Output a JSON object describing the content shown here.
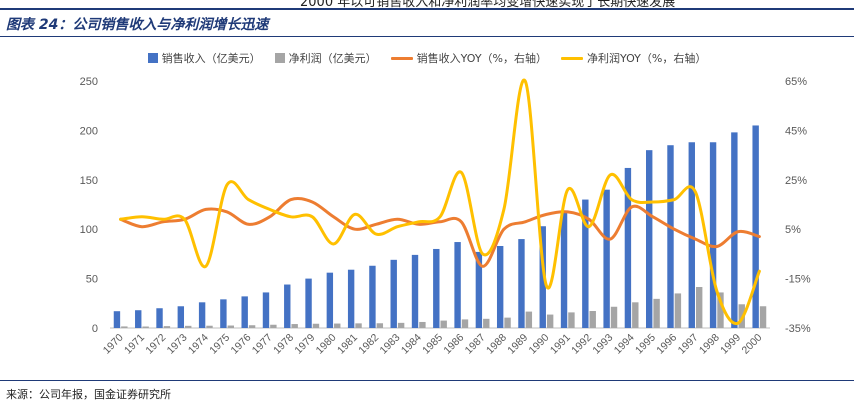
{
  "header_cut_text": "2000 年以可销售收入和净利润率均变增快速实现了长期快速发展",
  "figure_title": "图表 24：公司销售收入与净利润增长迅速",
  "source_note": "来源：公司年报，国金证券研究所",
  "chart_data": {
    "type": "bar",
    "categories": [
      "1970",
      "1971",
      "1972",
      "1973",
      "1974",
      "1975",
      "1976",
      "1977",
      "1978",
      "1979",
      "1980",
      "1981",
      "1982",
      "1983",
      "1984",
      "1985",
      "1986",
      "1987",
      "1988",
      "1989",
      "1990",
      "1991",
      "1992",
      "1993",
      "1994",
      "1995",
      "1996",
      "1997",
      "1998",
      "1999",
      "2000"
    ],
    "series": [
      {
        "name": "销售收入（亿美元）",
        "type": "bar",
        "axis": "left",
        "color": "#4472c4",
        "values": [
          17,
          18,
          20,
          22,
          26,
          29,
          32,
          36,
          44,
          50,
          56,
          59,
          63,
          69,
          74,
          80,
          87,
          77,
          83,
          90,
          103,
          118,
          130,
          140,
          162,
          180,
          185,
          188,
          188,
          198,
          205
        ]
      },
      {
        "name": "净利润（亿美元）",
        "type": "bar",
        "axis": "left",
        "color": "#a5a5a5",
        "values": [
          1.6,
          1.5,
          1.9,
          2.2,
          2.3,
          2.5,
          2.8,
          3.3,
          4.0,
          4.3,
          4.5,
          4.7,
          4.8,
          5.2,
          6.1,
          7.5,
          8.7,
          9.3,
          10.5,
          16.6,
          13.6,
          15.8,
          17.2,
          21.5,
          26,
          29.5,
          35,
          41.5,
          36,
          24,
          22
        ]
      },
      {
        "name": "销售收入YOY（%，右轴）",
        "type": "line",
        "axis": "right",
        "color": "#ed7d31",
        "values": [
          9,
          6,
          8,
          9,
          13,
          12,
          7,
          10,
          17,
          16,
          10,
          5,
          7,
          9,
          7,
          8,
          8,
          -10,
          5,
          8,
          11,
          12,
          9,
          1,
          14,
          10,
          5,
          1,
          -2,
          4,
          2
        ]
      },
      {
        "name": "净利润YOY（%，右轴）",
        "type": "line",
        "axis": "right",
        "color": "#ffc000",
        "values": [
          9,
          10,
          9,
          9,
          -10,
          23,
          17,
          13,
          10,
          10,
          -1,
          11,
          3,
          6,
          8,
          10,
          28,
          -5,
          13,
          65,
          -18,
          21,
          6,
          27,
          17,
          16,
          17,
          20,
          -20,
          -33,
          -12
        ]
      }
    ],
    "y_left": {
      "min": 0,
      "max": 250,
      "ticks": [
        0,
        50,
        100,
        150,
        200,
        250
      ]
    },
    "y_right": {
      "min": -35,
      "max": 65,
      "ticks": [
        "-35%",
        "-15%",
        "5%",
        "25%",
        "45%",
        "65%"
      ]
    },
    "legend_position": "top-center",
    "grid": false
  }
}
